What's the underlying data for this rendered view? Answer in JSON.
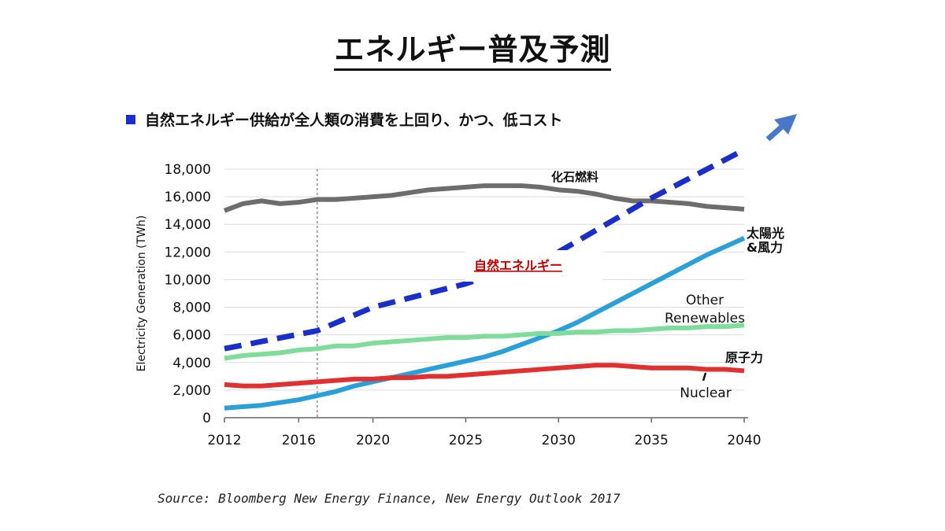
{
  "title": "エネルギー普及予測",
  "bullet": "自然エネルギー供給が全人類の消費を上回り、かつ、低コスト",
  "source": "Source: Bloomberg New Energy Finance, New Energy Outlook 2017",
  "chart_data": {
    "type": "line",
    "ylabel": "Electricity Generation (TWh)",
    "xlim": [
      2012,
      2040
    ],
    "ylim": [
      0,
      18000
    ],
    "x_ticks": [
      2012,
      2016,
      2020,
      2025,
      2030,
      2035,
      2040
    ],
    "y_ticks": [
      0,
      2000,
      4000,
      6000,
      8000,
      10000,
      12000,
      14000,
      16000,
      18000
    ],
    "y_tick_labels": [
      "0",
      "2,000",
      "4,000",
      "6,000",
      "8,000",
      "10,000",
      "12,000",
      "14,000",
      "16,000",
      "18,000"
    ],
    "vline_x": 2017,
    "grid": "horizontal",
    "colors": {
      "fossil": "#6d6d6d",
      "solar_wind": "#2b9fd8",
      "other_renewables": "#7fdc9b",
      "nuclear": "#e03030",
      "renewable_trend": "#1a2fc9",
      "arrow": "#4a78c8",
      "renewable_label": "#c00000"
    },
    "series": [
      {
        "name": "化石燃料",
        "color_key": "fossil",
        "x": [
          2012,
          2013,
          2014,
          2015,
          2016,
          2017,
          2018,
          2019,
          2020,
          2021,
          2022,
          2023,
          2024,
          2025,
          2026,
          2027,
          2028,
          2029,
          2030,
          2031,
          2032,
          2033,
          2034,
          2035,
          2036,
          2037,
          2038,
          2039,
          2040
        ],
        "y": [
          15000,
          15500,
          15700,
          15500,
          15600,
          15800,
          15800,
          15900,
          16000,
          16100,
          16300,
          16500,
          16600,
          16700,
          16800,
          16800,
          16800,
          16700,
          16500,
          16400,
          16200,
          15900,
          15700,
          15700,
          15600,
          15500,
          15300,
          15200,
          15100
        ]
      },
      {
        "name": "太陽光&風力",
        "color_key": "solar_wind",
        "x": [
          2012,
          2013,
          2014,
          2015,
          2016,
          2017,
          2018,
          2019,
          2020,
          2021,
          2022,
          2023,
          2024,
          2025,
          2026,
          2027,
          2028,
          2029,
          2030,
          2031,
          2032,
          2033,
          2034,
          2035,
          2036,
          2037,
          2038,
          2039,
          2040
        ],
        "y": [
          700,
          800,
          900,
          1100,
          1300,
          1600,
          1900,
          2300,
          2600,
          2900,
          3200,
          3500,
          3800,
          4100,
          4400,
          4800,
          5300,
          5800,
          6300,
          6900,
          7600,
          8300,
          9000,
          9700,
          10400,
          11100,
          11800,
          12400,
          13000
        ]
      },
      {
        "name": "Other Renewables",
        "color_key": "other_renewables",
        "x": [
          2012,
          2013,
          2014,
          2015,
          2016,
          2017,
          2018,
          2019,
          2020,
          2021,
          2022,
          2023,
          2024,
          2025,
          2026,
          2027,
          2028,
          2029,
          2030,
          2031,
          2032,
          2033,
          2034,
          2035,
          2036,
          2037,
          2038,
          2039,
          2040
        ],
        "y": [
          4300,
          4500,
          4600,
          4700,
          4900,
          5000,
          5200,
          5200,
          5400,
          5500,
          5600,
          5700,
          5800,
          5800,
          5900,
          5900,
          6000,
          6100,
          6100,
          6200,
          6200,
          6300,
          6300,
          6400,
          6500,
          6500,
          6600,
          6600,
          6700
        ]
      },
      {
        "name": "原子力 Nuclear",
        "color_key": "nuclear",
        "x": [
          2012,
          2013,
          2014,
          2015,
          2016,
          2017,
          2018,
          2019,
          2020,
          2021,
          2022,
          2023,
          2024,
          2025,
          2026,
          2027,
          2028,
          2029,
          2030,
          2031,
          2032,
          2033,
          2034,
          2035,
          2036,
          2037,
          2038,
          2039,
          2040
        ],
        "y": [
          2400,
          2300,
          2300,
          2400,
          2500,
          2600,
          2700,
          2800,
          2800,
          2900,
          2900,
          3000,
          3000,
          3100,
          3200,
          3300,
          3400,
          3500,
          3600,
          3700,
          3800,
          3800,
          3700,
          3600,
          3600,
          3600,
          3500,
          3500,
          3400
        ]
      },
      {
        "name": "自然エネルギー",
        "color_key": "renewable_trend",
        "style": "dashed",
        "x": [
          2012,
          2017,
          2020,
          2025,
          2030,
          2035,
          2040
        ],
        "y": [
          5000,
          6300,
          8000,
          9700,
          12000,
          15900,
          19400
        ]
      }
    ],
    "labels": {
      "fossil": "化石燃料",
      "solar_wind_1": "太陽光",
      "solar_wind_2": "&風力",
      "other_1": "Other",
      "other_2": "Renewables",
      "nuclear_jp": "原子力",
      "nuclear_en": "Nuclear",
      "renewable_trend": "自然エネルギー"
    }
  }
}
